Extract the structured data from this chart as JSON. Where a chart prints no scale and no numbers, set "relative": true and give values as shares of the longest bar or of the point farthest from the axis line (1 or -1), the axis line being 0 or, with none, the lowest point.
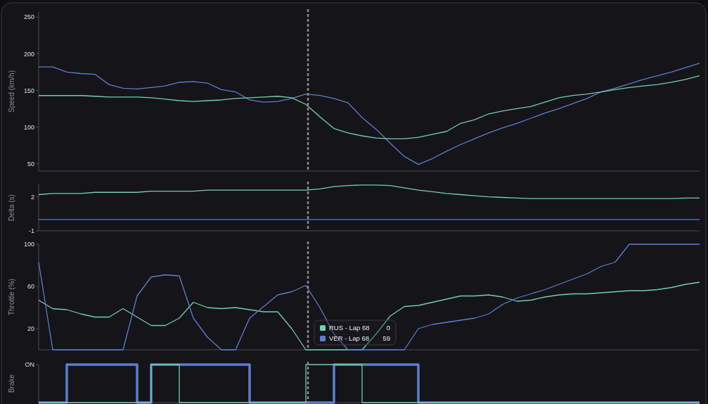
{
  "chart_data": [
    {
      "type": "line",
      "ylabel": "Speed (km/h)",
      "categories": [
        null,
        null,
        null,
        null,
        null,
        null,
        null,
        null,
        null,
        null,
        null,
        null,
        null,
        null,
        null,
        null,
        null,
        null,
        null,
        null,
        null,
        null,
        null,
        null,
        null,
        null,
        null,
        null,
        null,
        null,
        null,
        null,
        null,
        null,
        null,
        null,
        null,
        null,
        null,
        null,
        null,
        null,
        null,
        null,
        null,
        null,
        null,
        null
      ],
      "ylim": [
        40,
        257
      ],
      "yticks": [
        50,
        100,
        150,
        200,
        250
      ],
      "tick_labels": "y",
      "series": [
        {
          "color": "#5b7fd0",
          "values": [
            182,
            182,
            175,
            173,
            172,
            158,
            153,
            152,
            154,
            156,
            161,
            162,
            160,
            151,
            148,
            137,
            134,
            135,
            139,
            145,
            143,
            139,
            133,
            113,
            97,
            78,
            60,
            49,
            57,
            67,
            76,
            84,
            92,
            99,
            105,
            112,
            119,
            125,
            132,
            139,
            148,
            153,
            159,
            165,
            170,
            175,
            181,
            187
          ]
        },
        {
          "color": "#6fd0b0",
          "values": [
            143,
            143,
            143,
            143,
            142,
            141,
            141,
            141,
            140,
            138,
            136,
            135,
            136,
            137,
            139,
            140,
            141,
            142,
            140,
            131,
            114,
            98,
            92,
            88,
            85,
            84,
            84,
            86,
            90,
            94,
            105,
            110,
            118,
            122,
            125,
            128,
            134,
            140,
            143,
            145,
            148,
            151,
            154,
            156,
            158,
            161,
            165,
            170
          ]
        }
      ]
    },
    {
      "type": "line",
      "ylabel": "Delta (s)",
      "categories": [
        null,
        null,
        null,
        null,
        null,
        null,
        null,
        null,
        null,
        null,
        null,
        null,
        null,
        null,
        null,
        null,
        null,
        null,
        null,
        null,
        null,
        null,
        null,
        null,
        null,
        null,
        null,
        null,
        null,
        null,
        null,
        null,
        null,
        null,
        null,
        null,
        null,
        null,
        null,
        null,
        null,
        null,
        null,
        null,
        null,
        null,
        null,
        null
      ],
      "ylim": [
        -1,
        3.1
      ],
      "yticks": [
        -1,
        2
      ],
      "tick_labels": "y",
      "series": [
        {
          "color": "#5b7fd0",
          "values": [
            0,
            0,
            0,
            0,
            0,
            0,
            0,
            0,
            0,
            0,
            0,
            0,
            0,
            0,
            0,
            0,
            0,
            0,
            0,
            0,
            0,
            0,
            0,
            0,
            0,
            0,
            0,
            0,
            0,
            0,
            0,
            0,
            0,
            0,
            0,
            0,
            0,
            0,
            0,
            0,
            0,
            0,
            0,
            0,
            0,
            0,
            0,
            0
          ]
        },
        {
          "color": "#6fd0b0",
          "values": [
            2.2,
            2.3,
            2.3,
            2.3,
            2.4,
            2.4,
            2.4,
            2.4,
            2.5,
            2.5,
            2.5,
            2.5,
            2.6,
            2.6,
            2.6,
            2.6,
            2.6,
            2.6,
            2.6,
            2.6,
            2.7,
            2.9,
            3.0,
            3.05,
            3.05,
            3.0,
            2.8,
            2.6,
            2.45,
            2.3,
            2.2,
            2.1,
            2.0,
            1.95,
            1.9,
            1.85,
            1.85,
            1.85,
            1.85,
            1.85,
            1.85,
            1.85,
            1.85,
            1.85,
            1.85,
            1.85,
            1.9,
            1.9
          ]
        }
      ]
    },
    {
      "type": "line",
      "ylabel": "Throttle (%)",
      "categories": [
        null,
        null,
        null,
        null,
        null,
        null,
        null,
        null,
        null,
        null,
        null,
        null,
        null,
        null,
        null,
        null,
        null,
        null,
        null,
        null,
        null,
        null,
        null,
        null,
        null,
        null,
        null,
        null,
        null,
        null,
        null,
        null,
        null,
        null,
        null,
        null,
        null,
        null,
        null,
        null,
        null,
        null,
        null,
        null,
        null,
        null,
        null,
        null
      ],
      "ylim": [
        0,
        100
      ],
      "yticks": [
        20,
        60,
        100
      ],
      "tick_labels": "y",
      "legend": "bottom",
      "annotations": [
        "0",
        "59"
      ],
      "series": [
        {
          "name": "RUS - Lap 68",
          "color": "#6fd0b0",
          "values": [
            47,
            39,
            38,
            34,
            31,
            31,
            39,
            31,
            23,
            23,
            30,
            45,
            40,
            39,
            40,
            38,
            36,
            36,
            20,
            0,
            0,
            0,
            0,
            0,
            15,
            32,
            41,
            42,
            45,
            48,
            51,
            51,
            52,
            50,
            46,
            47,
            50,
            52,
            53,
            53,
            54,
            55,
            56,
            56,
            57,
            59,
            62,
            64
          ]
        },
        {
          "name": "VER - Lap 68",
          "color": "#5b7fd0",
          "values": [
            83,
            0,
            0,
            0,
            0,
            0,
            0,
            51,
            69,
            71,
            70,
            30,
            12,
            0,
            0,
            30,
            41,
            52,
            55,
            61,
            40,
            15,
            0,
            0,
            0,
            0,
            0,
            20,
            24,
            26,
            28,
            30,
            34,
            43,
            49,
            53,
            57,
            62,
            67,
            72,
            79,
            83,
            100,
            100,
            100,
            100,
            100,
            100
          ]
        }
      ]
    },
    {
      "type": "step",
      "ylabel": "Brake",
      "categories": [
        null,
        null,
        null,
        null,
        null,
        null,
        null,
        null,
        null,
        null,
        null,
        null,
        null,
        null,
        null,
        null,
        null,
        null,
        null,
        null,
        null,
        null,
        null,
        null,
        null,
        null,
        null,
        null,
        null,
        null,
        null,
        null,
        null,
        null,
        null,
        null,
        null,
        null,
        null,
        null,
        null,
        null,
        null,
        null,
        null,
        null,
        null,
        null
      ],
      "relative": true,
      "annotations": [
        "ON"
      ],
      "tick_labels": "y",
      "series": [
        {
          "color": "#5b7fd0",
          "values": [
            0,
            0,
            1,
            1,
            1,
            1,
            1,
            0,
            1,
            1,
            1,
            1,
            1,
            1,
            1,
            0,
            0,
            0,
            0,
            0,
            0,
            1,
            1,
            1,
            1,
            1,
            1,
            0,
            0,
            0,
            0,
            0,
            0,
            0,
            0,
            0,
            0,
            0,
            0,
            0,
            0,
            0,
            0,
            0,
            0,
            0,
            0,
            0
          ]
        },
        {
          "color": "#6fd0b0",
          "values": [
            0,
            0,
            0,
            0,
            0,
            0,
            0,
            0,
            1,
            1,
            0,
            0,
            0,
            0,
            0,
            0,
            0,
            0,
            0,
            1,
            1,
            1,
            1,
            0,
            0,
            0,
            0,
            0,
            0,
            0,
            0,
            0,
            0,
            0,
            0,
            0,
            0,
            0,
            0,
            0,
            0,
            0,
            0,
            0,
            0,
            0,
            0,
            0
          ]
        }
      ]
    }
  ]
}
